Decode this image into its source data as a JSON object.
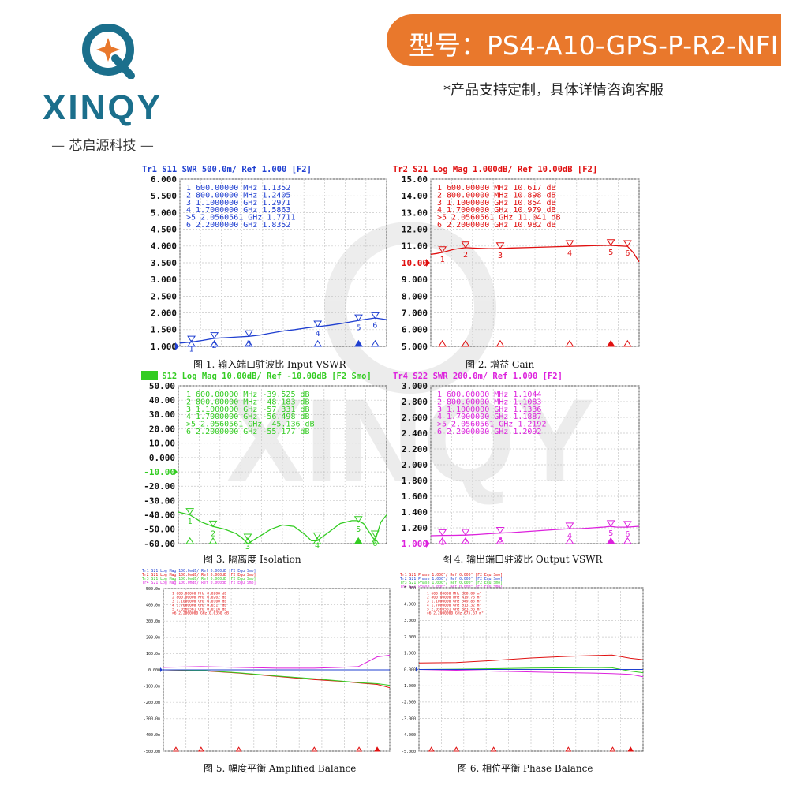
{
  "brand": {
    "logo_text": "XINQY",
    "name_cn": "芯启源科技"
  },
  "header": {
    "model": "型号：PS4-A10-GPS-P-R2-NFI",
    "note": "*产品支持定制，具体详情咨询客服"
  },
  "colors": {
    "brand_blue": "#1b6f8c",
    "banner_orange": "#e9782c",
    "s11": "#1f3fd0",
    "s21": "#e01010",
    "s12": "#33cc22",
    "s22": "#dd22dd"
  },
  "chart_data": [
    {
      "type": "line",
      "header": "Tr1 S11 SWR 500.0m/ Ref 1.000 [F2]",
      "caption": "图 1. 输入端口驻波比 Input VSWR",
      "color": "#1f3fd0",
      "ylim": [
        1.0,
        6.0
      ],
      "xlim": [
        0.5,
        2.3
      ],
      "yticks": [
        "6.000",
        "5.500",
        "5.000",
        "4.500",
        "4.000",
        "3.500",
        "3.000",
        "2.500",
        "2.000",
        "1.500",
        "1.000"
      ],
      "highlight_ref": false,
      "ref_index": 10,
      "markers": [
        {
          "id": "1",
          "freq": "600.00000 MHz",
          "val": "1.1352",
          "x": 0.6,
          "y": 1.1352
        },
        {
          "id": "2",
          "freq": "800.00000 MHz",
          "val": "1.2405",
          "x": 0.8,
          "y": 1.2405
        },
        {
          "id": "3",
          "freq": "1.1000000 GHz",
          "val": "1.2971",
          "x": 1.1,
          "y": 1.2971
        },
        {
          "id": "4",
          "freq": "1.7000000 GHz",
          "val": "1.5863",
          "x": 1.7,
          "y": 1.5863
        },
        {
          "id": ">5",
          "freq": "2.0560561 GHz",
          "val": "1.7711",
          "x": 2.056,
          "y": 1.7711
        },
        {
          "id": "6",
          "freq": "2.2000000 GHz",
          "val": "1.8352",
          "x": 2.2,
          "y": 1.8352
        }
      ],
      "x": [
        0.5,
        0.6,
        0.7,
        0.8,
        0.9,
        1.0,
        1.1,
        1.2,
        1.3,
        1.4,
        1.5,
        1.6,
        1.7,
        1.8,
        1.9,
        2.0,
        2.05,
        2.1,
        2.2,
        2.3
      ],
      "y": [
        1.1,
        1.13,
        1.18,
        1.24,
        1.26,
        1.28,
        1.3,
        1.34,
        1.4,
        1.46,
        1.5,
        1.55,
        1.59,
        1.63,
        1.68,
        1.74,
        1.77,
        1.8,
        1.85,
        1.8
      ]
    },
    {
      "type": "line",
      "header": "Tr2 S21 Log Mag 1.000dB/ Ref 10.00dB [F2]",
      "caption": "图 2. 增益 Gain",
      "color": "#e01010",
      "ylim": [
        5.0,
        15.0
      ],
      "xlim": [
        0.5,
        2.3
      ],
      "yticks": [
        "15.00",
        "14.00",
        "13.00",
        "12.00",
        "11.00",
        "10.00",
        "9.000",
        "8.000",
        "7.000",
        "6.000",
        "5.000"
      ],
      "highlight_ref": true,
      "ref_index": 5,
      "markers": [
        {
          "id": "1",
          "freq": "600.00000 MHz",
          "val": "10.617 dB",
          "x": 0.6,
          "y": 10.617
        },
        {
          "id": "2",
          "freq": "800.00000 MHz",
          "val": "10.898 dB",
          "x": 0.8,
          "y": 10.898
        },
        {
          "id": "3",
          "freq": "1.1000000 GHz",
          "val": "10.854 dB",
          "x": 1.1,
          "y": 10.854
        },
        {
          "id": "4",
          "freq": "1.7000000 GHz",
          "val": "10.979 dB",
          "x": 1.7,
          "y": 10.979
        },
        {
          "id": ">5",
          "freq": "2.0560561 GHz",
          "val": "11.041 dB",
          "x": 2.056,
          "y": 11.041
        },
        {
          "id": "6",
          "freq": "2.2000000 GHz",
          "val": "10.982 dB",
          "x": 2.2,
          "y": 10.982
        }
      ],
      "x": [
        0.5,
        0.55,
        0.6,
        0.7,
        0.8,
        0.9,
        1.0,
        1.1,
        1.2,
        1.4,
        1.6,
        1.7,
        1.8,
        1.9,
        2.0,
        2.05,
        2.1,
        2.2,
        2.25,
        2.3
      ],
      "y": [
        10.5,
        10.55,
        10.62,
        10.8,
        10.9,
        10.87,
        10.84,
        10.85,
        10.88,
        10.92,
        10.96,
        10.98,
        11.0,
        11.02,
        11.04,
        11.04,
        11.02,
        10.98,
        10.6,
        10.05
      ]
    },
    {
      "type": "line",
      "header": "Tr3 S12 Log Mag 10.00dB/ Ref -10.00dB [F2 Smo]",
      "caption": "图 3. 隔离度 Isolation",
      "color": "#33cc22",
      "ylim": [
        -60.0,
        50.0
      ],
      "xlim": [
        0.5,
        2.3
      ],
      "yticks": [
        "50.00",
        "40.00",
        "30.00",
        "20.00",
        "10.00",
        "0.000",
        "-10.00",
        "-20.00",
        "-30.00",
        "-40.00",
        "-50.00",
        "-60.00"
      ],
      "highlight_ref": true,
      "ref_index": 6,
      "markers": [
        {
          "id": "1",
          "freq": "600.00000 MHz",
          "val": "-39.525 dB",
          "x": 0.6,
          "y": -39.525
        },
        {
          "id": "2",
          "freq": "800.00000 MHz",
          "val": "-48.183 dB",
          "x": 0.8,
          "y": -48.183
        },
        {
          "id": "3",
          "freq": "1.1000000 GHz",
          "val": "-57.331 dB",
          "x": 1.1,
          "y": -57.331
        },
        {
          "id": "4",
          "freq": "1.7000000 GHz",
          "val": "-56.498 dB",
          "x": 1.7,
          "y": -56.498
        },
        {
          "id": ">5",
          "freq": "2.0560561 GHz",
          "val": "-45.136 dB",
          "x": 2.056,
          "y": -45.136
        },
        {
          "id": "6",
          "freq": "2.2000000 GHz",
          "val": "-55.177 dB",
          "x": 2.2,
          "y": -55.177
        }
      ],
      "x": [
        0.5,
        0.6,
        0.7,
        0.8,
        0.9,
        1.0,
        1.05,
        1.1,
        1.2,
        1.3,
        1.4,
        1.5,
        1.6,
        1.65,
        1.7,
        1.8,
        1.9,
        2.0,
        2.05,
        2.1,
        2.15,
        2.2,
        2.25,
        2.3
      ],
      "y": [
        -38,
        -40,
        -45,
        -48,
        -50,
        -53,
        -56,
        -60,
        -55,
        -50,
        -47,
        -48,
        -54,
        -58,
        -58,
        -52,
        -46,
        -44,
        -44,
        -46,
        -52,
        -58,
        -45,
        -40
      ]
    },
    {
      "type": "line",
      "header": "Tr4 S22 SWR 200.0m/ Ref 1.000 [F2]",
      "caption": "图 4. 输出端口驻波比 Output VSWR",
      "color": "#dd22dd",
      "ylim": [
        1.0,
        3.0
      ],
      "xlim": [
        0.5,
        2.3
      ],
      "yticks": [
        "3.000",
        "2.800",
        "2.600",
        "2.400",
        "2.200",
        "2.000",
        "1.800",
        "1.600",
        "1.400",
        "1.200",
        "1.000"
      ],
      "highlight_ref": true,
      "ref_index": 10,
      "markers": [
        {
          "id": "1",
          "freq": "600.00000 MHz",
          "val": "1.1044",
          "x": 0.6,
          "y": 1.1044
        },
        {
          "id": "2",
          "freq": "800.00000 MHz",
          "val": "1.1083",
          "x": 0.8,
          "y": 1.1083
        },
        {
          "id": "3",
          "freq": "1.1000000 GHz",
          "val": "1.1336",
          "x": 1.1,
          "y": 1.1336
        },
        {
          "id": "4",
          "freq": "1.7000000 GHz",
          "val": "1.1887",
          "x": 1.7,
          "y": 1.1887
        },
        {
          "id": ">5",
          "freq": "2.0560561 GHz",
          "val": "1.2192",
          "x": 2.056,
          "y": 1.2192
        },
        {
          "id": "6",
          "freq": "2.2000000 GHz",
          "val": "1.2092",
          "x": 2.2,
          "y": 1.2092
        }
      ],
      "x": [
        0.5,
        0.6,
        0.7,
        0.8,
        0.9,
        1.0,
        1.1,
        1.2,
        1.3,
        1.4,
        1.5,
        1.6,
        1.7,
        1.8,
        1.9,
        2.0,
        2.05,
        2.1,
        2.2,
        2.3
      ],
      "y": [
        1.1,
        1.104,
        1.105,
        1.108,
        1.115,
        1.125,
        1.134,
        1.14,
        1.15,
        1.16,
        1.17,
        1.18,
        1.189,
        1.19,
        1.2,
        1.21,
        1.219,
        1.21,
        1.209,
        1.22
      ]
    },
    {
      "type": "line",
      "headers": [
        "Tr1 S21 Log Mag 100.0mdB/ Ref 0.000dB [F2 Equ Smo]",
        "Tr2 S21 Log Mag 100.0mdB/ Ref 0.000dB [F2 Equ Smo]",
        "Tr3 S21 Log Mag 100.0mdB/ Ref 0.000dB [F2 Equ Smo]",
        "Tr4 S21 Log Mag 100.0mdB/ Ref 0.000dB [F2 Equ Smo]"
      ],
      "caption": "图 5. 幅度平衡 Amplified Balance",
      "ylim": [
        -500,
        500
      ],
      "xlim": [
        0.5,
        2.3
      ],
      "yticks": [
        "500.0m",
        "400.0m",
        "300.0m",
        "200.0m",
        "100.0m",
        "0.000",
        "-100.0m",
        "-200.0m",
        "-300.0m",
        "-400.0m",
        "-500.0m"
      ],
      "ref_index": 5,
      "markers": [
        {
          "id": "1",
          "freq": "600.00000 MHz",
          "val": "0.0288 dB",
          "x": 0.6
        },
        {
          "id": "2",
          "freq": "800.00000 MHz",
          "val": "0.0202 dB",
          "x": 0.8
        },
        {
          "id": "3",
          "freq": "1.1000000 GHz",
          "val": "0.0100 dB",
          "x": 1.1
        },
        {
          "id": "4",
          "freq": "1.7000000 GHz",
          "val": "0.0317 dB",
          "x": 1.7
        },
        {
          "id": "5",
          "freq": "2.0560561 GHz",
          "val": "0.0316 dB",
          "x": 2.056
        },
        {
          "id": ">6",
          "freq": "2.2000000 GHz",
          "val": "0.0350 dB",
          "x": 2.2
        }
      ],
      "series": [
        {
          "color": "#dd22dd",
          "x": [
            0.5,
            0.8,
            1.1,
            1.4,
            1.7,
            1.9,
            2.05,
            2.2,
            2.3
          ],
          "y": [
            15,
            20,
            15,
            10,
            10,
            15,
            20,
            80,
            90
          ]
        },
        {
          "color": "#e01010",
          "x": [
            0.5,
            0.8,
            1.1,
            1.4,
            1.7,
            1.9,
            2.05,
            2.2,
            2.3
          ],
          "y": [
            0,
            -5,
            -20,
            -40,
            -60,
            -70,
            -80,
            -90,
            -110
          ]
        },
        {
          "color": "#33cc22",
          "x": [
            0.5,
            0.8,
            1.1,
            1.4,
            1.7,
            1.9,
            2.05,
            2.2,
            2.3
          ],
          "y": [
            0,
            -3,
            -18,
            -38,
            -55,
            -68,
            -78,
            -85,
            -95
          ]
        },
        {
          "color": "#1f3fd0",
          "x": [
            0.5,
            2.3
          ],
          "y": [
            0,
            0
          ]
        }
      ]
    },
    {
      "type": "line",
      "headers": [
        "Tr1 S21 Phase 1.000°/ Ref 0.000° [F2 Equ Smo]",
        "Tr2 S21 Phase 1.000°/ Ref 0.000° [F2 Equ Smo]",
        "Tr3 S21 Phase 1.000°/ Ref 0.000° [F2 Equ Smo]",
        "Tr4 S21 Phase 1.000°/ Ref 0.000° [F2 Equ Smo]"
      ],
      "caption": "图 6. 相位平衡 Phase Balance",
      "ylim": [
        -5,
        5
      ],
      "xlim": [
        0.5,
        2.3
      ],
      "yticks": [
        "5.000",
        "4.000",
        "3.000",
        "2.000",
        "1.000",
        "0.000",
        "-1.000",
        "-2.000",
        "-3.000",
        "-4.000",
        "-5.000"
      ],
      "ref_index": 5,
      "markers": [
        {
          "id": "1",
          "freq": "600.00000 MHz",
          "val": "388.89 m°",
          "x": 0.6
        },
        {
          "id": "2",
          "freq": "800.00000 MHz",
          "val": "419.73 m°",
          "x": 0.8
        },
        {
          "id": "3",
          "freq": "1.1000000 GHz",
          "val": "549.85 m°",
          "x": 1.1
        },
        {
          "id": "4",
          "freq": "1.7000000 GHz",
          "val": "813.32 m°",
          "x": 1.7
        },
        {
          "id": "5",
          "freq": "2.0560561 GHz",
          "val": "883.56 m°",
          "x": 2.056
        },
        {
          "id": ">6",
          "freq": "2.2000000 GHz",
          "val": "675.67 m°",
          "x": 2.2
        }
      ],
      "series": [
        {
          "color": "#e01010",
          "x": [
            0.5,
            0.8,
            1.1,
            1.4,
            1.7,
            1.9,
            2.05,
            2.2,
            2.3
          ],
          "y": [
            0.4,
            0.42,
            0.55,
            0.7,
            0.8,
            0.85,
            0.88,
            0.68,
            0.6
          ]
        },
        {
          "color": "#33cc22",
          "x": [
            0.5,
            0.8,
            1.1,
            1.4,
            1.7,
            1.9,
            2.05,
            2.2,
            2.3
          ],
          "y": [
            0,
            0.02,
            0.05,
            0.08,
            0.1,
            0.12,
            0.1,
            -0.1,
            -0.2
          ]
        },
        {
          "color": "#dd22dd",
          "x": [
            0.5,
            0.8,
            1.1,
            1.4,
            1.7,
            1.9,
            2.05,
            2.2,
            2.3
          ],
          "y": [
            0,
            -0.05,
            -0.1,
            -0.15,
            -0.2,
            -0.22,
            -0.25,
            -0.3,
            -0.45
          ]
        },
        {
          "color": "#1f3fd0",
          "x": [
            0.5,
            2.3
          ],
          "y": [
            0,
            0
          ]
        }
      ]
    }
  ]
}
